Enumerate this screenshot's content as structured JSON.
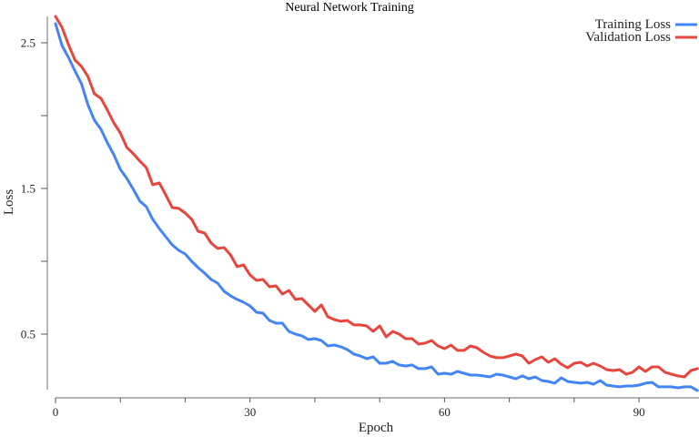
{
  "chart_data": {
    "type": "line",
    "title": "Neural Network Training",
    "xlabel": "Epoch",
    "ylabel": "Loss",
    "xlim": [
      0,
      99
    ],
    "ylim": [
      0.12,
      2.7
    ],
    "x_ticks": [
      0,
      10,
      20,
      30,
      40,
      50,
      60,
      70,
      80,
      90
    ],
    "x_tick_labels": [
      "0",
      "",
      "",
      "30",
      "",
      "",
      "60",
      "",
      "",
      "90"
    ],
    "y_ticks": [
      0.5,
      1.0,
      1.5,
      2.0,
      2.5
    ],
    "y_tick_labels": [
      "0.5",
      "",
      "1.5",
      "",
      "2.5"
    ],
    "grid": false,
    "legend_position": "top-right",
    "x": [
      0,
      1,
      2,
      3,
      4,
      5,
      6,
      7,
      8,
      9,
      10,
      11,
      12,
      13,
      14,
      15,
      16,
      17,
      18,
      19,
      20,
      21,
      22,
      23,
      24,
      25,
      26,
      27,
      28,
      29,
      30,
      31,
      32,
      33,
      34,
      35,
      36,
      37,
      38,
      39,
      40,
      41,
      42,
      43,
      44,
      45,
      46,
      47,
      48,
      49,
      50,
      51,
      52,
      53,
      54,
      55,
      56,
      57,
      58,
      59,
      60,
      61,
      62,
      63,
      64,
      65,
      66,
      67,
      68,
      69,
      70,
      71,
      72,
      73,
      74,
      75,
      76,
      77,
      78,
      79,
      80,
      81,
      82,
      83,
      84,
      85,
      86,
      87,
      88,
      89,
      90,
      91,
      92,
      93,
      94,
      95,
      96,
      97,
      98,
      99
    ],
    "series": [
      {
        "name": "Training Loss",
        "color": "#4285f4",
        "values": [
          2.631,
          2.481,
          2.4,
          2.306,
          2.219,
          2.075,
          1.969,
          1.906,
          1.813,
          1.731,
          1.631,
          1.569,
          1.494,
          1.413,
          1.375,
          1.288,
          1.225,
          1.169,
          1.113,
          1.075,
          1.05,
          1.0,
          0.956,
          0.919,
          0.875,
          0.85,
          0.794,
          0.763,
          0.738,
          0.719,
          0.694,
          0.65,
          0.644,
          0.594,
          0.575,
          0.575,
          0.519,
          0.5,
          0.488,
          0.463,
          0.469,
          0.456,
          0.419,
          0.425,
          0.413,
          0.394,
          0.363,
          0.35,
          0.331,
          0.344,
          0.3,
          0.3,
          0.313,
          0.288,
          0.281,
          0.288,
          0.263,
          0.263,
          0.275,
          0.225,
          0.231,
          0.225,
          0.244,
          0.231,
          0.219,
          0.219,
          0.213,
          0.206,
          0.225,
          0.219,
          0.206,
          0.194,
          0.213,
          0.194,
          0.206,
          0.181,
          0.175,
          0.163,
          0.2,
          0.175,
          0.169,
          0.163,
          0.169,
          0.156,
          0.181,
          0.15,
          0.144,
          0.138,
          0.144,
          0.144,
          0.15,
          0.163,
          0.169,
          0.138,
          0.138,
          0.138,
          0.131,
          0.138,
          0.138,
          0.113
        ]
      },
      {
        "name": "Validation Loss",
        "color": "#e8453c",
        "values": [
          2.681,
          2.606,
          2.488,
          2.381,
          2.338,
          2.269,
          2.15,
          2.119,
          2.038,
          1.95,
          1.881,
          1.781,
          1.738,
          1.688,
          1.644,
          1.525,
          1.538,
          1.456,
          1.369,
          1.363,
          1.331,
          1.288,
          1.206,
          1.194,
          1.125,
          1.088,
          1.094,
          1.044,
          0.963,
          0.975,
          0.906,
          0.869,
          0.875,
          0.825,
          0.831,
          0.775,
          0.8,
          0.738,
          0.744,
          0.7,
          0.656,
          0.7,
          0.619,
          0.6,
          0.588,
          0.594,
          0.563,
          0.563,
          0.556,
          0.519,
          0.556,
          0.481,
          0.519,
          0.5,
          0.469,
          0.469,
          0.431,
          0.438,
          0.456,
          0.419,
          0.4,
          0.425,
          0.388,
          0.388,
          0.419,
          0.406,
          0.375,
          0.35,
          0.338,
          0.338,
          0.35,
          0.363,
          0.35,
          0.3,
          0.325,
          0.344,
          0.306,
          0.331,
          0.294,
          0.269,
          0.3,
          0.306,
          0.281,
          0.3,
          0.281,
          0.256,
          0.25,
          0.256,
          0.225,
          0.238,
          0.275,
          0.244,
          0.275,
          0.275,
          0.238,
          0.225,
          0.213,
          0.206,
          0.25,
          0.263
        ]
      }
    ]
  }
}
